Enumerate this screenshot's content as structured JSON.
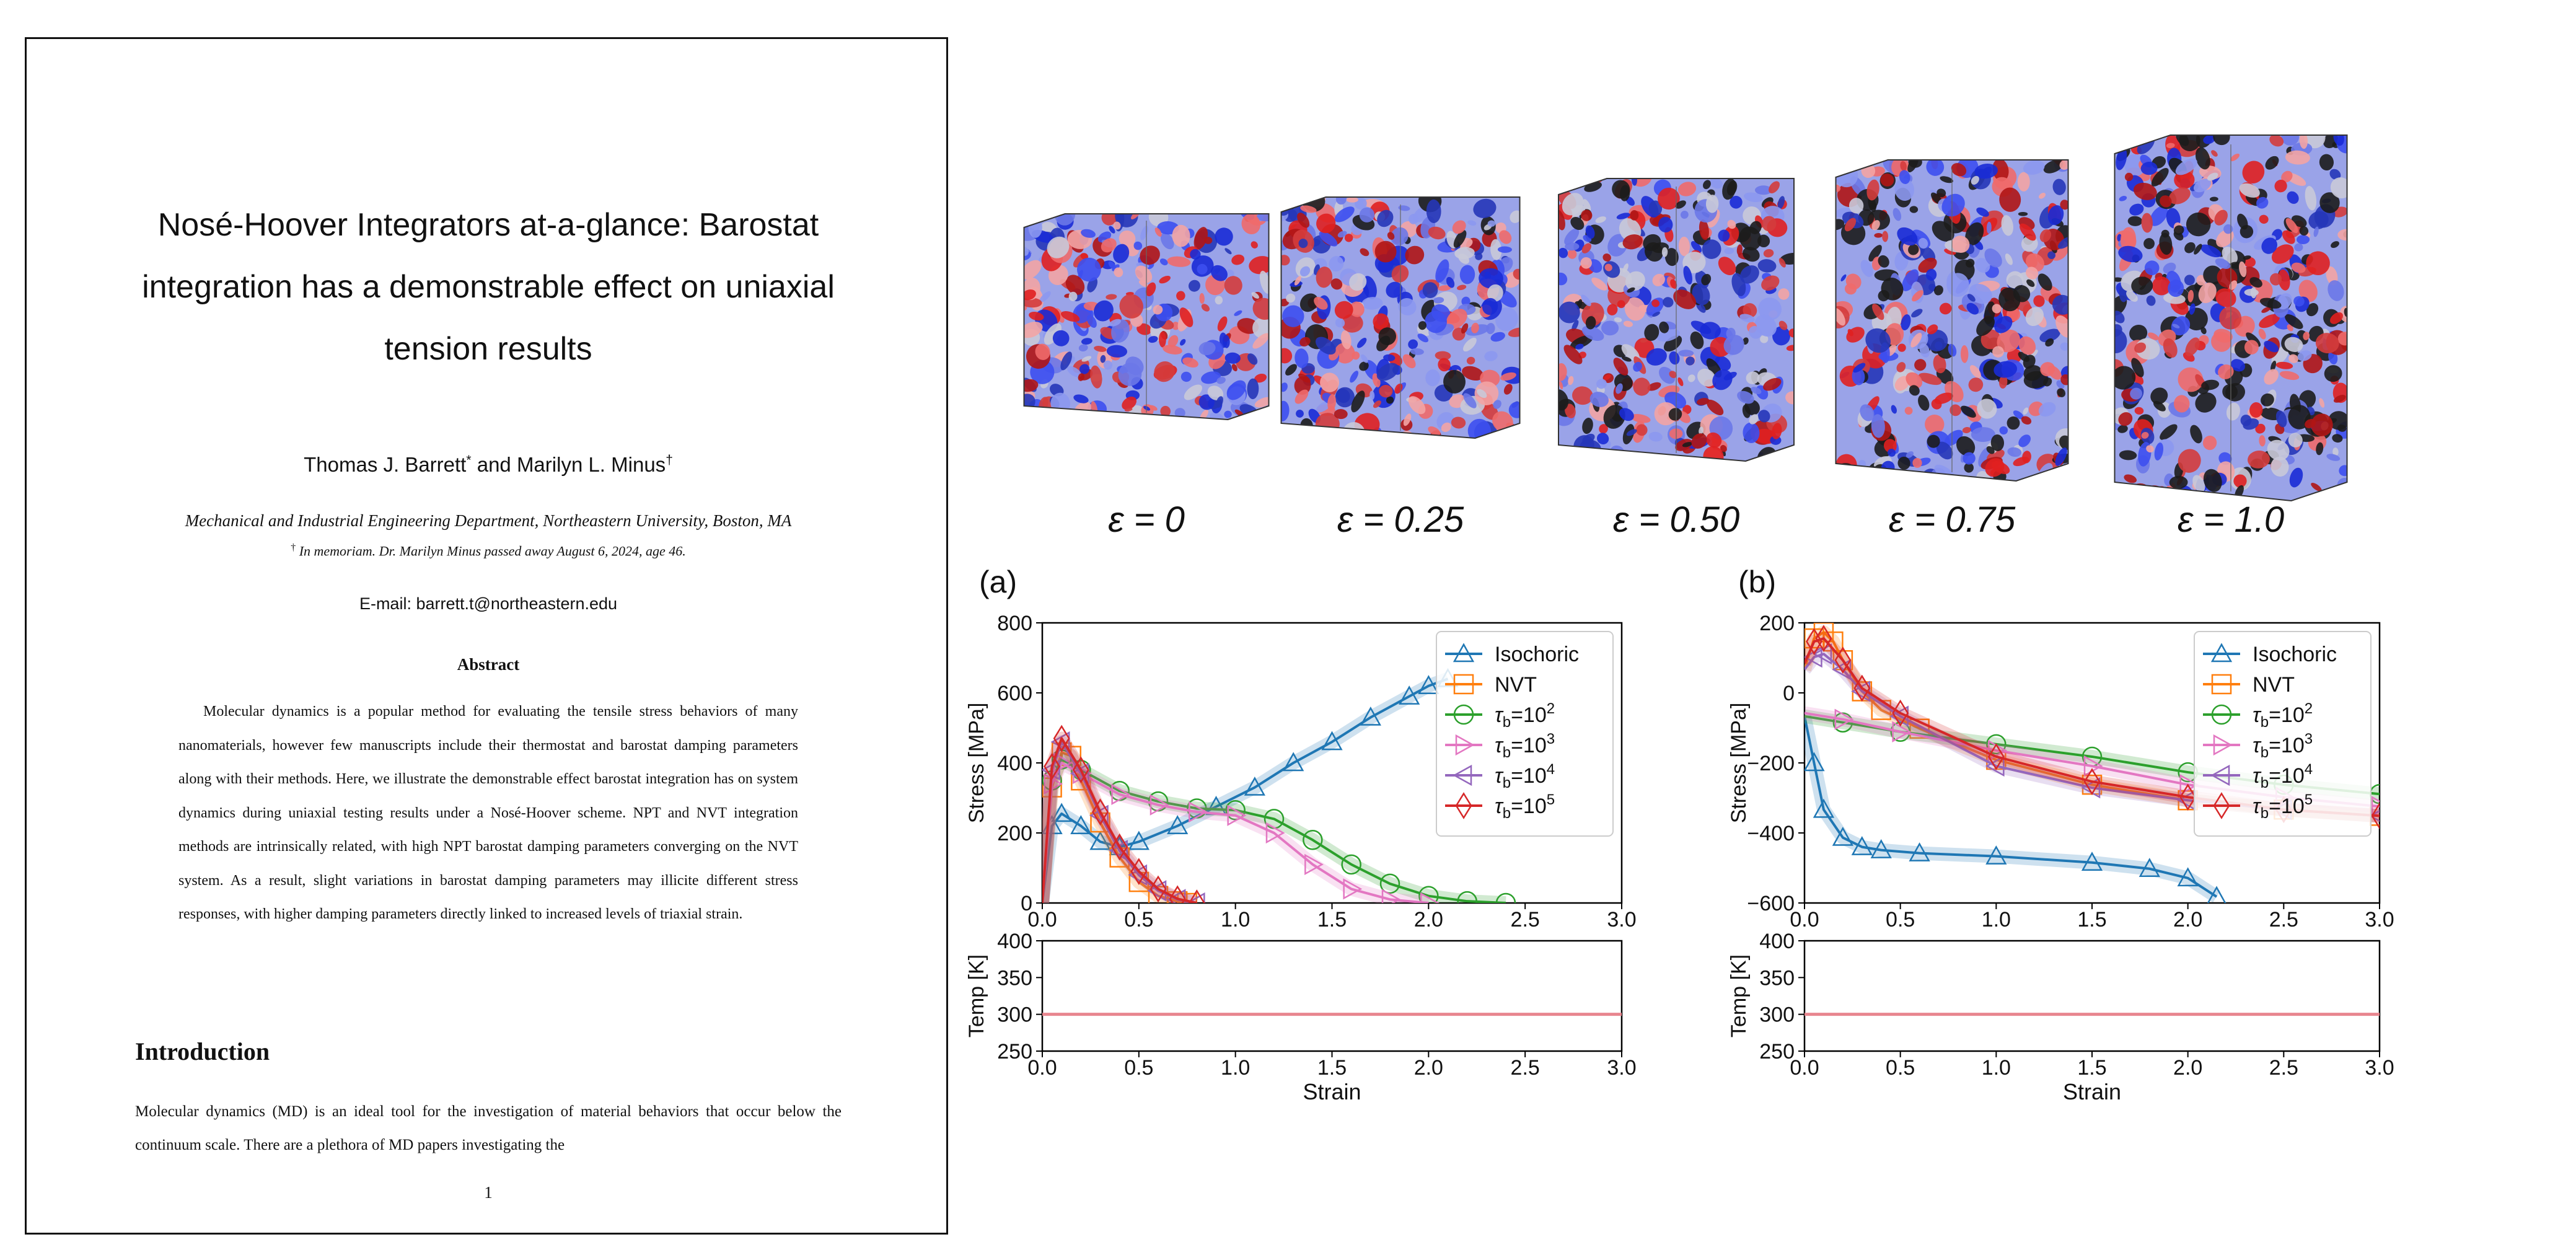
{
  "paper": {
    "title": "Nosé-Hoover Integrators at-a-glance: Barostat integration has a demonstrable effect on uniaxial tension results",
    "authors": "Thomas J. Barrett",
    "authors_and": " and Marilyn L. Minus",
    "author1_mark": "*",
    "author2_mark": "†",
    "affiliation": "Mechanical and Industrial Engineering Department, Northeastern University, Boston, MA",
    "memoriam_mark": "†",
    "memoriam": "In memoriam. Dr. Marilyn Minus passed away August 6, 2024, age 46.",
    "email_label": "E-mail: ",
    "email": "barrett.t@northeastern.edu",
    "abstract_heading": "Abstract",
    "abstract": "Molecular dynamics is a popular method for evaluating the tensile stress behaviors of many nanomaterials, however few manuscripts include their thermostat and barostat damping parameters along with their methods. Here, we illustrate the demonstrable effect barostat integration has on system dynamics during uniaxial testing results under a Nosé-Hoover scheme. NPT and NVT integration methods are intrinsically related, with high NPT barostat damping parameters converging on the NVT system. As a result, slight variations in barostat damping parameters may illicite different stress responses, with higher damping parameters directly linked to increased levels of triaxial strain.",
    "intro_heading": "Introduction",
    "intro_text": "Molecular dynamics (MD) is an ideal tool for the investigation of material behaviors that occur below the continuum scale. There are a plethora of MD papers investigating the",
    "page_number": "1"
  },
  "figure": {
    "strain_labels": [
      "ε = 0",
      "ε = 0.25",
      "ε = 0.50",
      "ε = 0.75",
      "ε = 1.0"
    ],
    "panel_a_label": "(a)",
    "panel_b_label": "(b)",
    "colors": {
      "Isochoric": "#1f77b4",
      "NVT": "#ff7f0e",
      "tau2": "#2ca02c",
      "tau3": "#e377c2",
      "tau4": "#9467bd",
      "tau5": "#d62728",
      "temp_line": "#e8868f"
    }
  },
  "chart_data": [
    {
      "type": "line",
      "panel": "(a)",
      "xlabel": "Strain",
      "ylabel": "Stress [MPa]",
      "xlim": [
        0,
        3
      ],
      "ylim": [
        0,
        800
      ],
      "xticks": [
        "0.0",
        "0.5",
        "1.0",
        "1.5",
        "2.0",
        "2.5",
        "3.0"
      ],
      "yticks": [
        "0",
        "200",
        "400",
        "600",
        "800"
      ],
      "legend_position": "top-right",
      "series": [
        {
          "name": "Isochoric",
          "marker": "triangle-up",
          "x": [
            0,
            0.05,
            0.1,
            0.2,
            0.3,
            0.4,
            0.5,
            0.7,
            0.9,
            1.1,
            1.3,
            1.5,
            1.7,
            1.9,
            2.0,
            2.1
          ],
          "y": [
            0,
            220,
            255,
            220,
            175,
            160,
            175,
            220,
            275,
            330,
            400,
            460,
            530,
            590,
            620,
            640
          ]
        },
        {
          "name": "NVT",
          "marker": "square",
          "x": [
            0,
            0.05,
            0.1,
            0.15,
            0.2,
            0.3,
            0.4,
            0.5,
            0.6,
            0.7,
            0.75
          ],
          "y": [
            0,
            330,
            430,
            420,
            350,
            230,
            130,
            60,
            20,
            5,
            0
          ]
        },
        {
          "name": "τb=10^2",
          "marker": "circle",
          "x": [
            0,
            0.05,
            0.1,
            0.2,
            0.4,
            0.6,
            0.8,
            1.0,
            1.2,
            1.4,
            1.6,
            1.8,
            2.0,
            2.2,
            2.4
          ],
          "y": [
            0,
            350,
            410,
            380,
            320,
            290,
            270,
            265,
            240,
            180,
            110,
            55,
            20,
            5,
            0
          ]
        },
        {
          "name": "τb=10^3",
          "marker": "triangle-right",
          "x": [
            0,
            0.05,
            0.1,
            0.2,
            0.4,
            0.6,
            0.8,
            1.0,
            1.2,
            1.4,
            1.6,
            1.8,
            2.0
          ],
          "y": [
            0,
            340,
            400,
            370,
            310,
            280,
            260,
            250,
            200,
            110,
            40,
            10,
            0
          ]
        },
        {
          "name": "τb=10^4",
          "marker": "triangle-left",
          "x": [
            0,
            0.05,
            0.1,
            0.2,
            0.3,
            0.4,
            0.5,
            0.6,
            0.7,
            0.8
          ],
          "y": [
            0,
            380,
            460,
            370,
            250,
            150,
            80,
            35,
            10,
            0
          ]
        },
        {
          "name": "τb=10^5",
          "marker": "diamond",
          "x": [
            0,
            0.05,
            0.1,
            0.2,
            0.3,
            0.4,
            0.5,
            0.6,
            0.7,
            0.8
          ],
          "y": [
            0,
            390,
            470,
            380,
            260,
            160,
            90,
            40,
            12,
            0
          ]
        }
      ]
    },
    {
      "type": "line",
      "panel": "(a)",
      "xlabel": "Strain",
      "ylabel": "Temp [K]",
      "xlim": [
        0,
        3
      ],
      "ylim": [
        250,
        400
      ],
      "xticks": [
        "0.0",
        "0.5",
        "1.0",
        "1.5",
        "2.0",
        "2.5",
        "3.0"
      ],
      "yticks": [
        "250",
        "300",
        "350",
        "400"
      ],
      "series": [
        {
          "x": [
            0,
            3
          ],
          "y": [
            300,
            300
          ]
        }
      ]
    },
    {
      "type": "line",
      "panel": "(b)",
      "xlabel": "Strain",
      "ylabel": "Stress [MPa]",
      "xlim": [
        0,
        3
      ],
      "ylim": [
        -600,
        300
      ],
      "xticks": [
        "0.0",
        "0.5",
        "1.0",
        "1.5",
        "2.0",
        "2.5",
        "3.0"
      ],
      "yticks": [
        "−600",
        "−400",
        "−200",
        "0",
        "200"
      ],
      "legend_position": "top-right",
      "series": [
        {
          "name": "Isochoric",
          "marker": "triangle-up",
          "x": [
            0,
            0.05,
            0.1,
            0.2,
            0.3,
            0.4,
            0.6,
            1.0,
            1.5,
            1.8,
            2.0,
            2.15
          ],
          "y": [
            0,
            -150,
            -300,
            -390,
            -420,
            -430,
            -440,
            -450,
            -470,
            -490,
            -520,
            -580
          ]
        },
        {
          "name": "NVT",
          "marker": "square",
          "x": [
            0,
            0.05,
            0.1,
            0.15,
            0.2,
            0.3,
            0.4,
            0.6,
            1.0,
            1.5,
            2.0,
            2.5,
            3.0
          ],
          "y": [
            150,
            250,
            270,
            240,
            180,
            80,
            20,
            -40,
            -140,
            -220,
            -270,
            -300,
            -320
          ]
        },
        {
          "name": "τb=10^2",
          "marker": "circle",
          "x": [
            0,
            0.2,
            0.5,
            1.0,
            1.5,
            2.0,
            2.5,
            3.0
          ],
          "y": [
            0,
            -20,
            -50,
            -90,
            -130,
            -180,
            -220,
            -250
          ]
        },
        {
          "name": "τb=10^3",
          "marker": "triangle-right",
          "x": [
            0,
            0.2,
            0.5,
            1.0,
            1.5,
            2.0,
            2.5,
            3.0
          ],
          "y": [
            10,
            -10,
            -50,
            -110,
            -160,
            -220,
            -260,
            -290
          ]
        },
        {
          "name": "τb=10^4",
          "marker": "triangle-left",
          "x": [
            0,
            0.05,
            0.1,
            0.2,
            0.3,
            0.5,
            1.0,
            1.5,
            2.0,
            2.5,
            3.0
          ],
          "y": [
            150,
            190,
            200,
            150,
            80,
            0,
            -160,
            -230,
            -270,
            -300,
            -320
          ]
        },
        {
          "name": "τb=10^5",
          "marker": "diamond",
          "x": [
            0,
            0.05,
            0.1,
            0.2,
            0.3,
            0.5,
            1.0,
            1.5,
            2.0,
            2.5,
            3.0
          ],
          "y": [
            170,
            240,
            250,
            180,
            90,
            10,
            -130,
            -210,
            -260,
            -300,
            -320
          ]
        }
      ]
    },
    {
      "type": "line",
      "panel": "(b)",
      "xlabel": "Strain",
      "ylabel": "Temp [K]",
      "xlim": [
        0,
        3
      ],
      "ylim": [
        250,
        400
      ],
      "xticks": [
        "0.0",
        "0.5",
        "1.0",
        "1.5",
        "2.0",
        "2.5",
        "3.0"
      ],
      "yticks": [
        "250",
        "300",
        "350",
        "400"
      ],
      "series": [
        {
          "x": [
            0,
            3
          ],
          "y": [
            300,
            300
          ]
        }
      ]
    }
  ]
}
